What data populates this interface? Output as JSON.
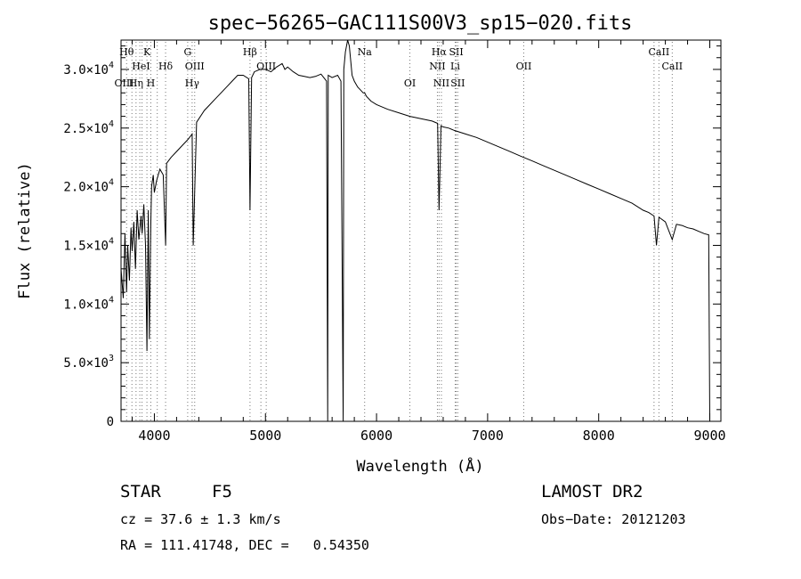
{
  "chart_data": {
    "type": "line",
    "title": "spec−56265−GAC111S00V3_sp15−020.fits",
    "xlabel": "Wavelength (Å)",
    "ylabel": "Flux (relative)",
    "xlim": [
      3700,
      9100
    ],
    "ylim": [
      0,
      32500
    ],
    "x_ticks": [
      {
        "value": 4000,
        "label": "4000"
      },
      {
        "value": 5000,
        "label": "5000"
      },
      {
        "value": 6000,
        "label": "6000"
      },
      {
        "value": 7000,
        "label": "7000"
      },
      {
        "value": 8000,
        "label": "8000"
      },
      {
        "value": 9000,
        "label": "9000"
      }
    ],
    "y_ticks": [
      {
        "value": 0,
        "mant": "0",
        "exp": ""
      },
      {
        "value": 5000,
        "mant": "5.0×10",
        "exp": "3"
      },
      {
        "value": 10000,
        "mant": "1.0×10",
        "exp": "4"
      },
      {
        "value": 15000,
        "mant": "1.5×10",
        "exp": "4"
      },
      {
        "value": 20000,
        "mant": "2.0×10",
        "exp": "4"
      },
      {
        "value": 25000,
        "mant": "2.5×10",
        "exp": "4"
      },
      {
        "value": 30000,
        "mant": "3.0×10",
        "exp": "4"
      }
    ],
    "series": [
      {
        "values_x": [
          3700,
          3720,
          3735,
          3750,
          3760,
          3775,
          3790,
          3800,
          3815,
          3830,
          3845,
          3860,
          3880,
          3890,
          3905,
          3920,
          3933,
          3945,
          3955,
          3968,
          3975,
          3990,
          4000,
          4020,
          4050,
          4080,
          4101,
          4110,
          4150,
          4200,
          4250,
          4300,
          4340,
          4350,
          4380,
          4450,
          4500,
          4550,
          4600,
          4650,
          4700,
          4750,
          4800,
          4850,
          4861,
          4875,
          4900,
          4950,
          5000,
          5050,
          5100,
          5150,
          5175,
          5200,
          5250,
          5300,
          5350,
          5400,
          5450,
          5500,
          5550,
          5560,
          5565,
          5600,
          5650,
          5680,
          5700,
          5705,
          5720,
          5740,
          5755,
          5780,
          5800,
          5830,
          5850,
          5880,
          5893,
          5910,
          5950,
          6000,
          6100,
          6200,
          6300,
          6400,
          6500,
          6550,
          6563,
          6580,
          6600,
          6650,
          6700,
          6800,
          6900,
          7000,
          7100,
          7200,
          7300,
          7400,
          7500,
          7600,
          7700,
          7800,
          7900,
          8000,
          8100,
          8200,
          8300,
          8400,
          8450,
          8498,
          8520,
          8542,
          8600,
          8662,
          8700,
          8750,
          8800,
          8850,
          8900,
          8950,
          8990,
          9000
        ],
        "values_y": [
          13000,
          10500,
          16000,
          11000,
          15000,
          12000,
          16500,
          14500,
          17000,
          13000,
          18000,
          15500,
          17500,
          16000,
          18500,
          15000,
          6000,
          18000,
          7000,
          17000,
          20000,
          21000,
          19500,
          20500,
          21500,
          21000,
          15000,
          22000,
          22500,
          23000,
          23500,
          24000,
          24500,
          15000,
          25500,
          26500,
          27000,
          27500,
          28000,
          28500,
          29000,
          29500,
          29500,
          29200,
          18000,
          29300,
          29800,
          30000,
          30000,
          29800,
          30200,
          30500,
          30000,
          30200,
          29800,
          29500,
          29400,
          29300,
          29400,
          29600,
          29000,
          0,
          29500,
          29300,
          29500,
          29000,
          0,
          30000,
          31500,
          33000,
          32000,
          29500,
          29000,
          28500,
          28300,
          28000,
          28000,
          27700,
          27300,
          27000,
          26600,
          26300,
          26000,
          25800,
          25600,
          25400,
          18000,
          25200,
          25100,
          25000,
          24800,
          24500,
          24200,
          23800,
          23400,
          23000,
          22600,
          22200,
          21800,
          21400,
          21000,
          20600,
          20200,
          19800,
          19400,
          19000,
          18600,
          18000,
          17800,
          17500,
          15000,
          17400,
          17000,
          15500,
          16800,
          16700,
          16500,
          16400,
          16200,
          16000,
          15900,
          0
        ]
      }
    ],
    "line_markers": [
      {
        "wl": 3750,
        "label": "Hθ",
        "row": 1
      },
      {
        "wl": 3798,
        "label": "",
        "row": 1
      },
      {
        "wl": 3835,
        "label": "Hη",
        "row": 3
      },
      {
        "wl": 3869,
        "label": "",
        "row": 1
      },
      {
        "wl": 3889,
        "label": "",
        "row": 1
      },
      {
        "wl": 3933,
        "label": "K",
        "row": 1
      },
      {
        "wl": 3968,
        "label": "H",
        "row": 3
      },
      {
        "wl": 4026,
        "label": "",
        "row": 1
      },
      {
        "wl": 4101,
        "label": "Hδ",
        "row": 2
      },
      {
        "wl": 4300,
        "label": "G",
        "row": 1
      },
      {
        "wl": 4340,
        "label": "Hγ",
        "row": 3
      },
      {
        "wl": 4363,
        "label": "",
        "row": 1
      },
      {
        "wl": 4861,
        "label": "Hβ",
        "row": 1
      },
      {
        "wl": 4959,
        "label": "",
        "row": 1
      },
      {
        "wl": 5007,
        "label": "",
        "row": 1
      },
      {
        "wl": 5893,
        "label": "Na",
        "row": 1
      },
      {
        "wl": 6300,
        "label": "OI",
        "row": 3
      },
      {
        "wl": 6548,
        "label": "",
        "row": 1
      },
      {
        "wl": 6563,
        "label": "Hα",
        "row": 1
      },
      {
        "wl": 6584,
        "label": "",
        "row": 1
      },
      {
        "wl": 6708,
        "label": "Li",
        "row": 2
      },
      {
        "wl": 6717,
        "label": "SII",
        "row": 1
      },
      {
        "wl": 6731,
        "label": "",
        "row": 1
      },
      {
        "wl": 7325,
        "label": "OII",
        "row": 2
      },
      {
        "wl": 8498,
        "label": "",
        "row": 1
      },
      {
        "wl": 8542,
        "label": "CaII",
        "row": 1
      },
      {
        "wl": 8662,
        "label": "CaII",
        "row": 2
      }
    ],
    "extra_marker_labels": [
      {
        "text": "HeI",
        "wl": 3880,
        "row": 2
      },
      {
        "text": "OIII",
        "wl": 4363,
        "row": 2
      },
      {
        "text": "OIII",
        "wl": 5007,
        "row": 2
      },
      {
        "text": "OIII",
        "wl": 3728,
        "row": 3
      },
      {
        "text": "NII",
        "wl": 6548,
        "row": 2
      },
      {
        "text": "NII",
        "wl": 6584,
        "row": 3
      },
      {
        "text": "SII",
        "wl": 6731,
        "row": 3
      }
    ]
  },
  "footer": {
    "class_label": "STAR",
    "subclass": "F5",
    "survey": "LAMOST DR2",
    "cz": "cz = 37.6 ± 1.3 km/s",
    "obs_date": "Obs−Date: 20121203",
    "coords": "RA = 111.41748, DEC =   0.54350"
  }
}
